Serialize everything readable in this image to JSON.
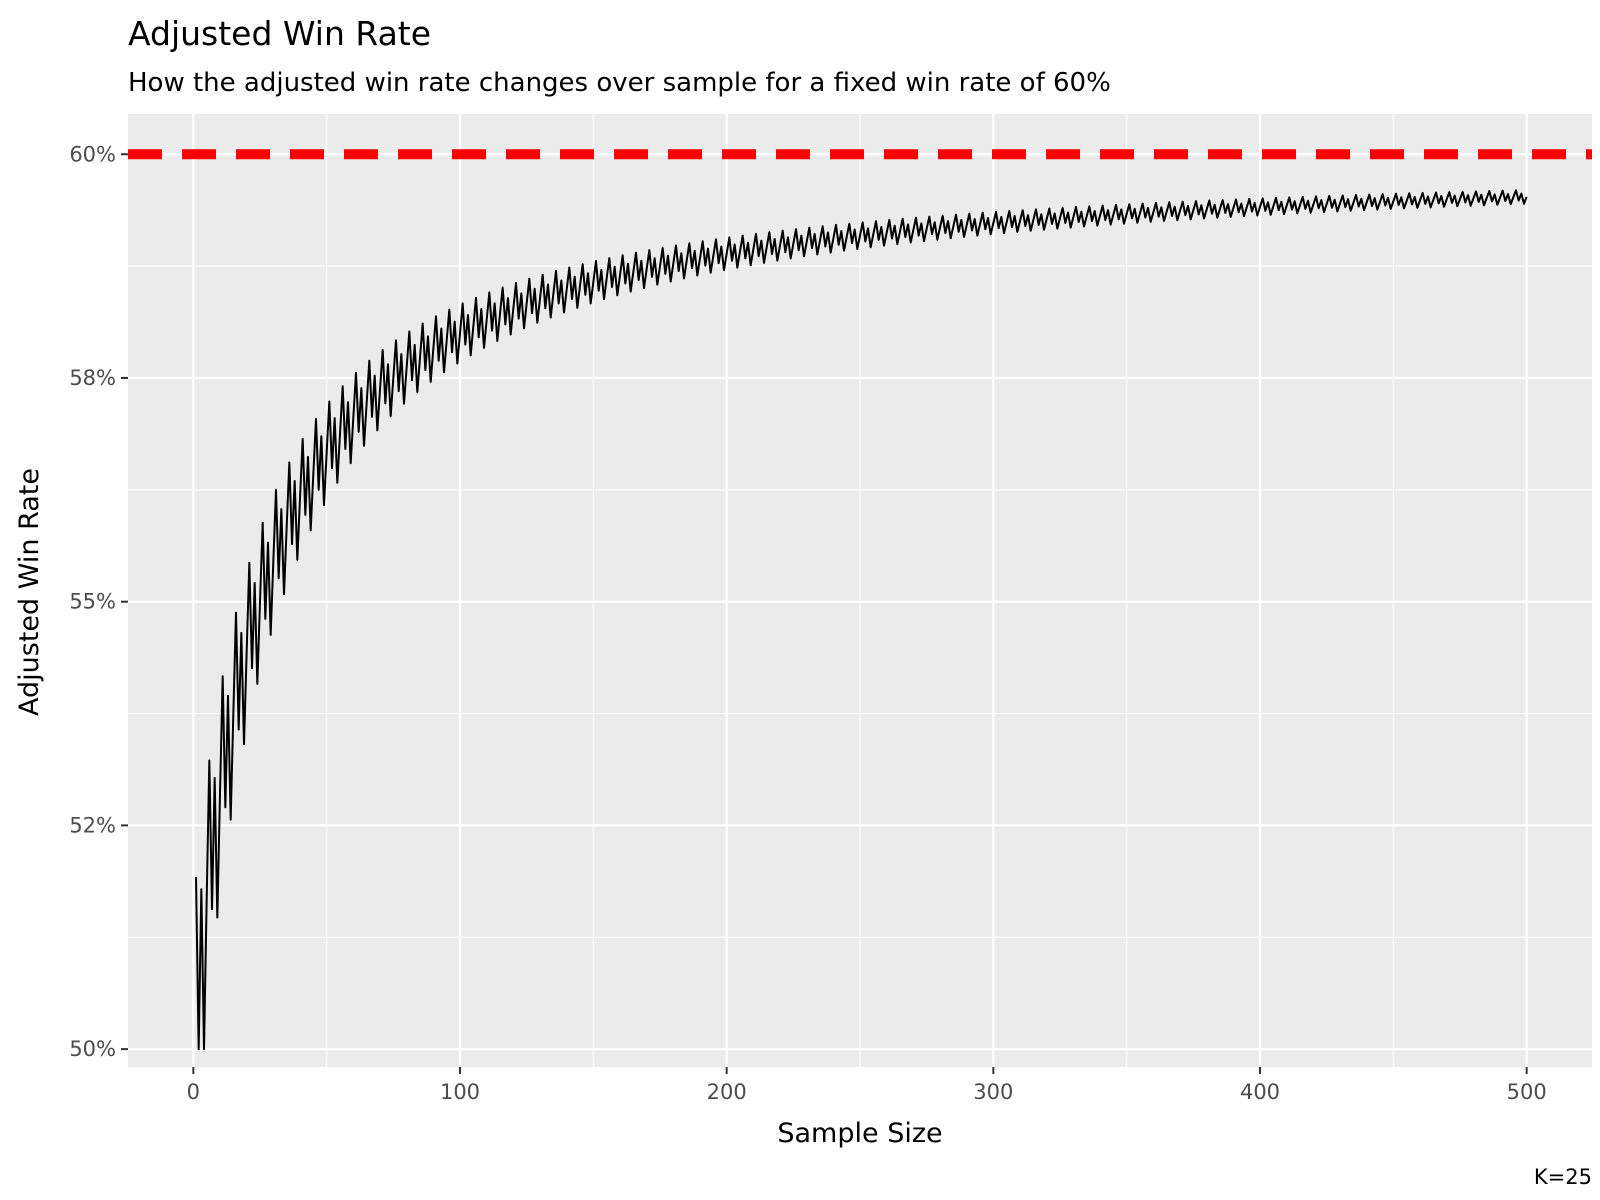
{
  "chart_data": {
    "type": "line",
    "title": "Adjusted Win Rate",
    "subtitle": "How the adjusted win rate changes over sample for a fixed win rate of 60%",
    "xlabel": "Sample Size",
    "ylabel": "Adjusted Win Rate",
    "caption": "K=25",
    "xlim": [
      -24.5,
      524.5
    ],
    "ylim": [
      0.498,
      0.6045
    ],
    "x_ticks": [
      0,
      100,
      200,
      300,
      400,
      500
    ],
    "x_tick_labels": [
      "0",
      "100",
      "200",
      "300",
      "400",
      "500"
    ],
    "y_ticks": [
      0.5,
      0.525,
      0.55,
      0.575,
      0.6
    ],
    "y_tick_labels": [
      "50%",
      "52%",
      "55%",
      "58%",
      "60%"
    ],
    "grid": true,
    "legend": "none",
    "reference_line": {
      "y": 0.6,
      "style": "dashed",
      "color": "#ff0000"
    },
    "series": [
      {
        "color": "#000000",
        "model": "adjusted = (wins + K*0.5) / (n + K), wins = round(0.6*n)",
        "K": 25,
        "true_rate": 0.6,
        "n_min": 1,
        "n_max": 500
      }
    ]
  },
  "colors": {
    "panel": "#ebebeb",
    "grid_major": "#ffffff",
    "reference": "#ff0000",
    "line": "#000000"
  }
}
